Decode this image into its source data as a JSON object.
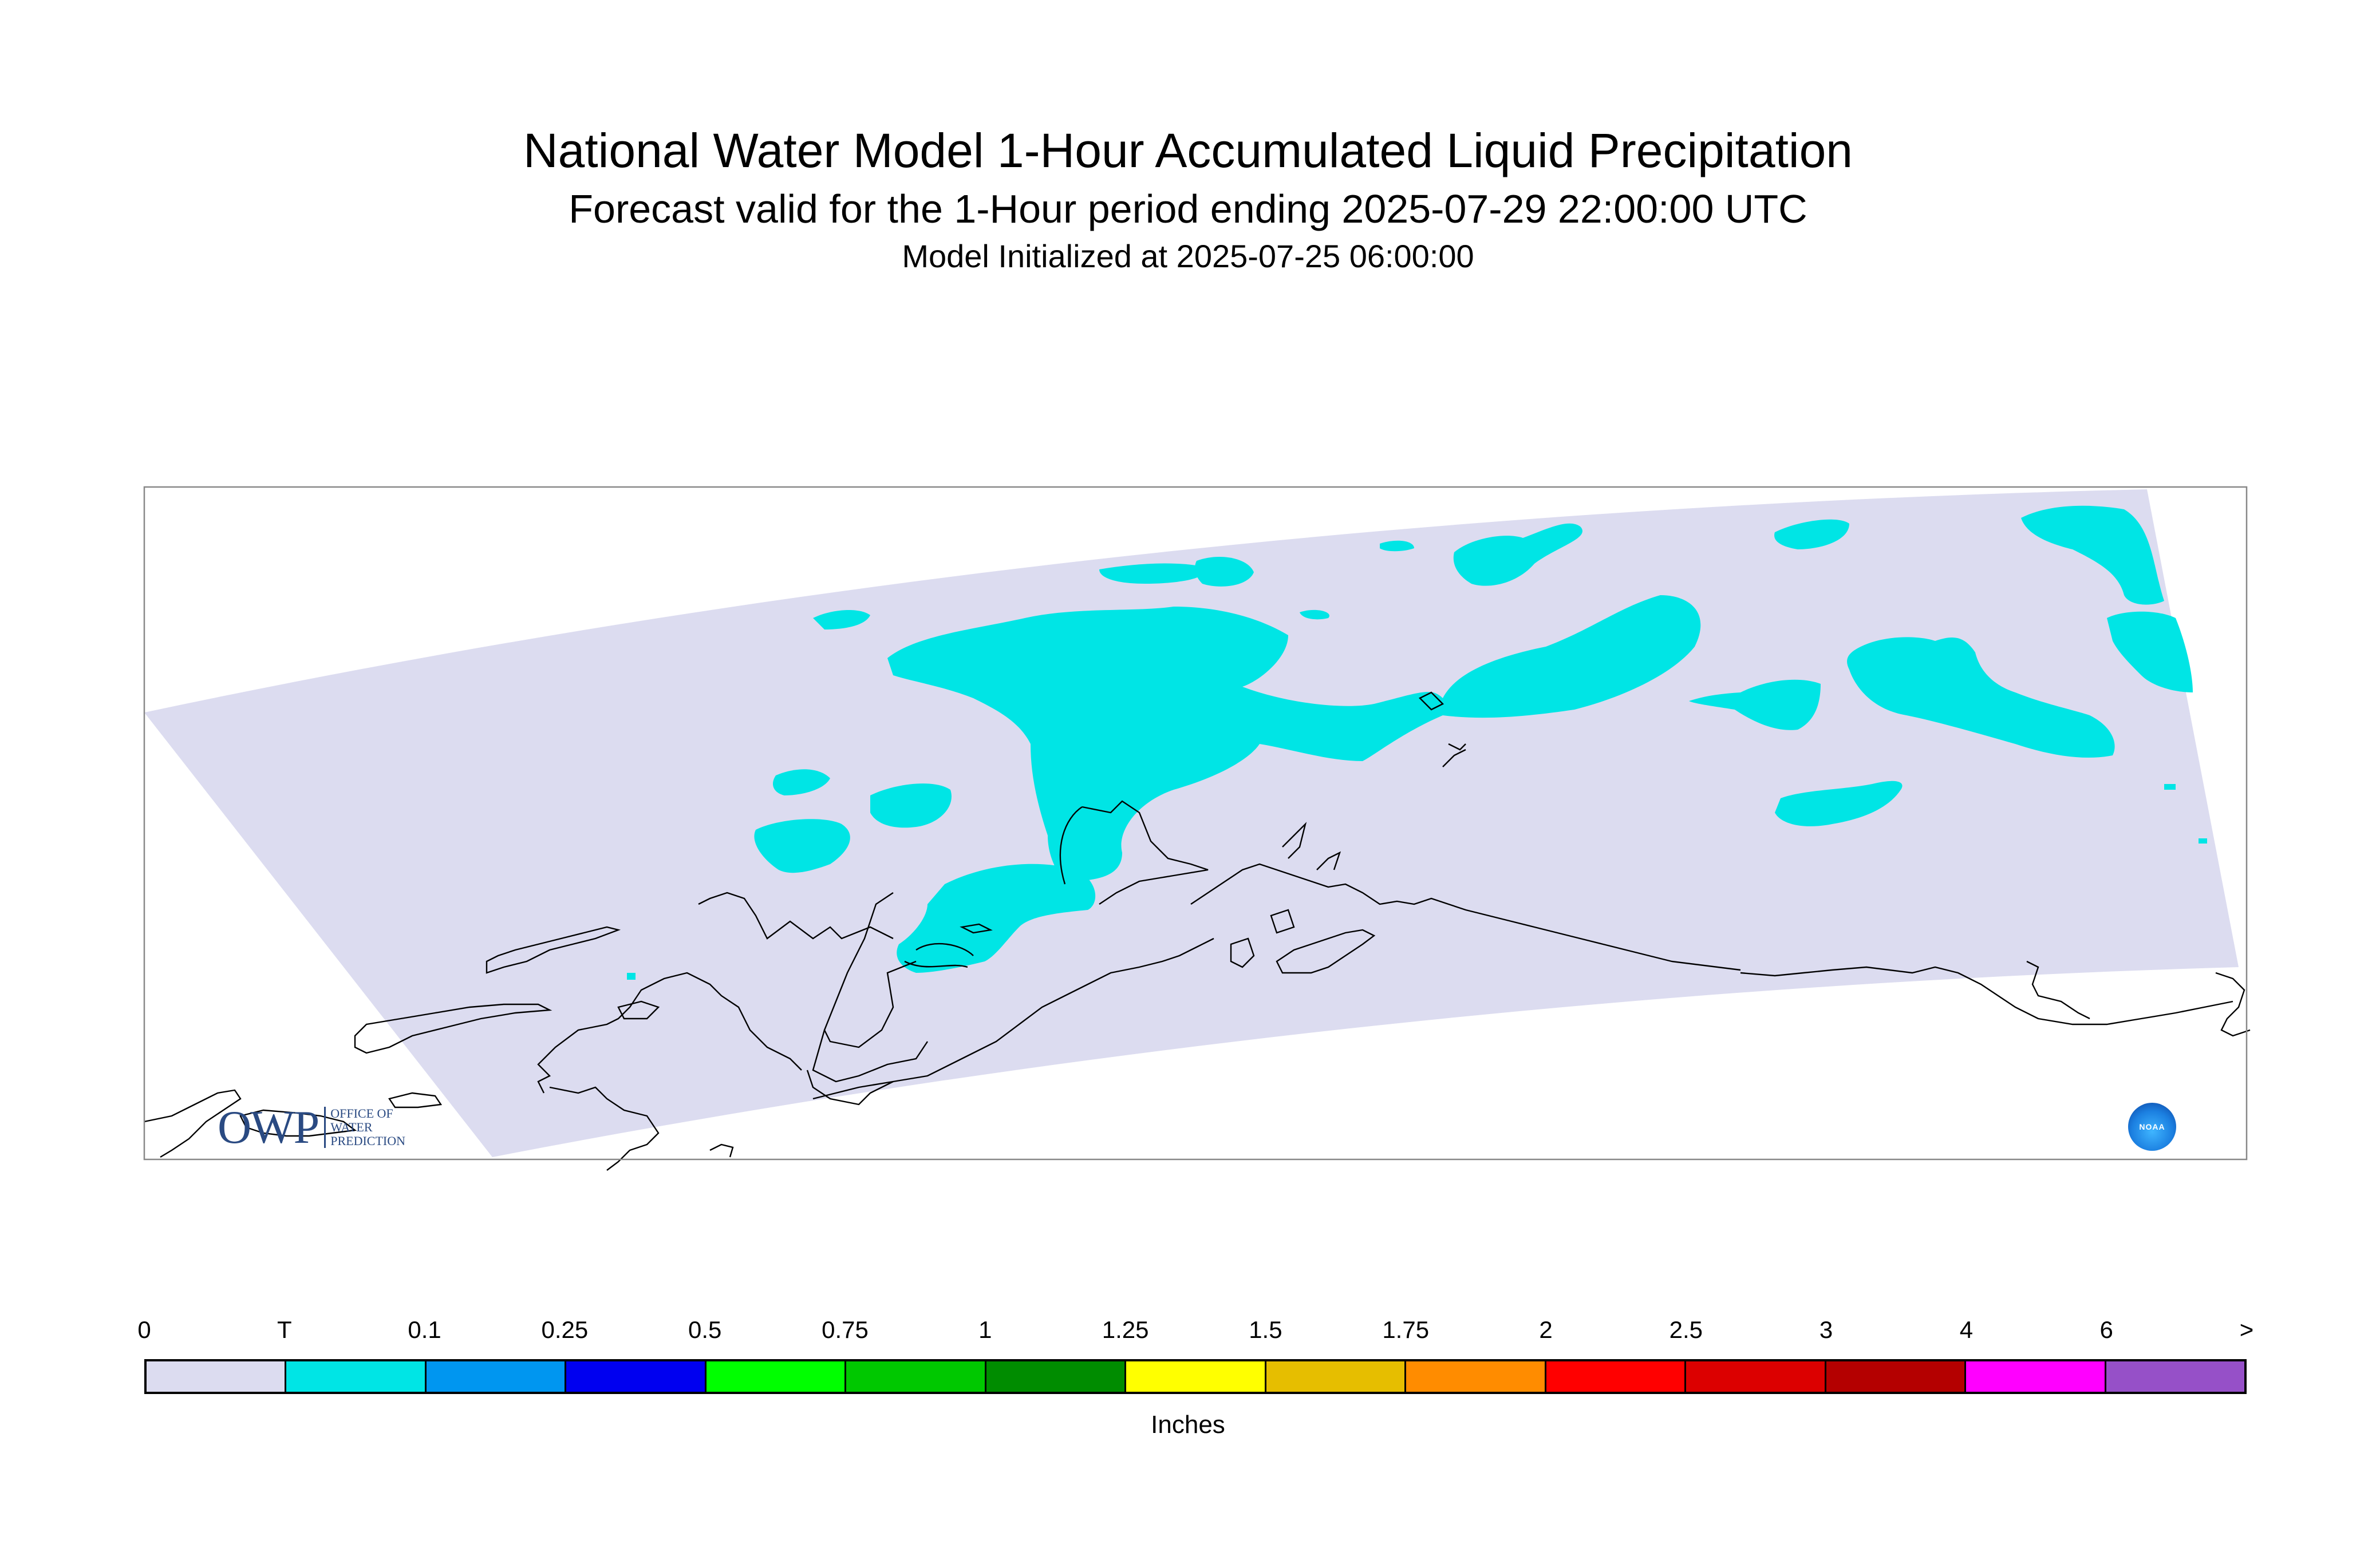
{
  "header": {
    "title": "National Water Model 1-Hour Accumulated Liquid Precipitation",
    "subtitle": "Forecast valid for the 1-Hour period ending 2025-07-29 22:00:00 UTC",
    "init_line": "Model Initialized at 2025-07-25 06:00:00"
  },
  "map": {
    "domain_fill_color": "#dcdcf0",
    "precip_fill_color": "#00e5e5",
    "coastline_color": "#000000",
    "frame_color": "#888888"
  },
  "legend": {
    "ticks": [
      "0",
      "T",
      "0.1",
      "0.25",
      "0.5",
      "0.75",
      "1",
      "1.25",
      "1.5",
      "1.75",
      "2",
      "2.5",
      "3",
      "4",
      "6",
      ">"
    ],
    "colors": [
      "#dcdcf0",
      "#00e5e5",
      "#0096f0",
      "#0000f0",
      "#00ff00",
      "#00c800",
      "#008c00",
      "#ffff00",
      "#e6be00",
      "#ff8c00",
      "#ff0000",
      "#dc0000",
      "#b40000",
      "#ff00ff",
      "#9650c8"
    ],
    "units_label": "Inches"
  },
  "logos": {
    "owp_mark": "OWP",
    "owp_text": [
      "OFFICE OF",
      "WATER",
      "PREDICTION"
    ],
    "noaa_text": "NOAA"
  }
}
